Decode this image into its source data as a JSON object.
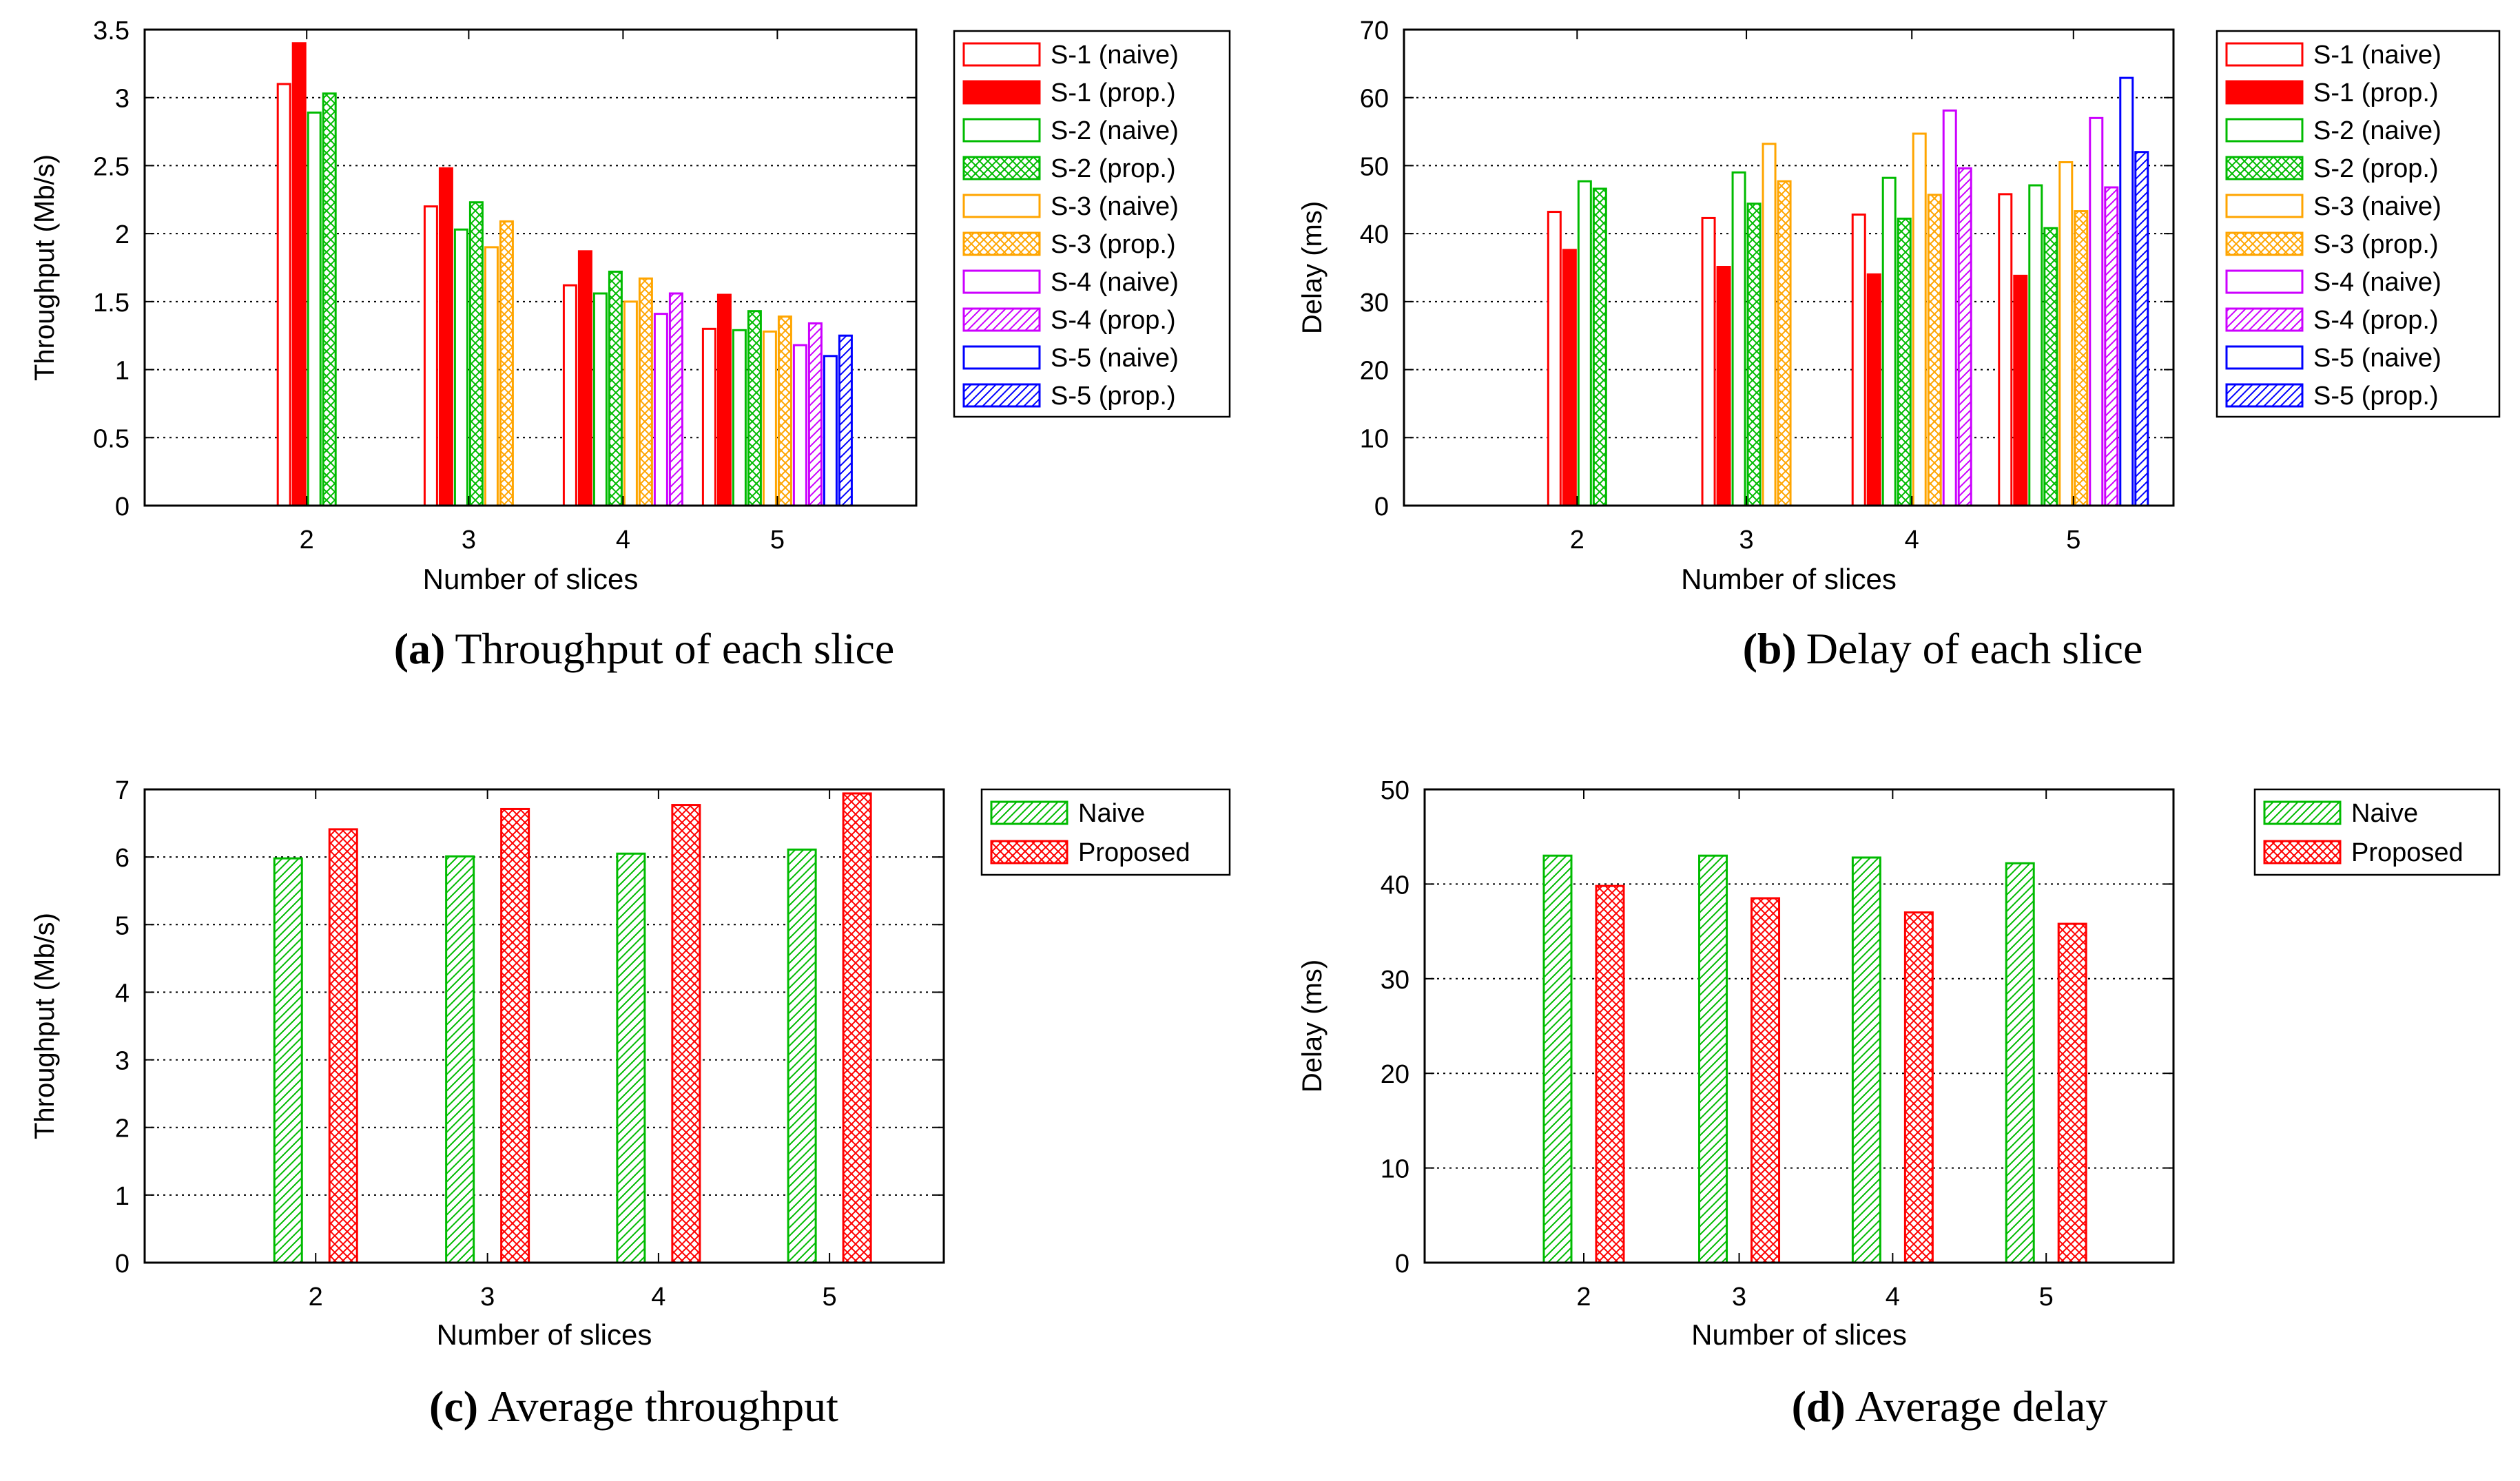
{
  "colors": {
    "s1": "#ff0000",
    "s2": "#00bb00",
    "s3": "#ffa500",
    "s4": "#cc00ff",
    "s5": "#0000ff",
    "naive_avg": "#00bb00",
    "proposed_avg": "#ff0000"
  },
  "chart_data": [
    {
      "id": "a",
      "type": "bar",
      "caption_label": "(a)",
      "caption_text": "Throughput of each slice",
      "xlabel": "Number of slices",
      "ylabel": "Throughput (Mb/s)",
      "ylim": [
        0,
        3.5
      ],
      "yticks": [
        "0",
        "0.5",
        "1",
        "1.5",
        "2",
        "2.5",
        "3",
        "3.5"
      ],
      "grid": true,
      "legend_position": "right",
      "categories": [
        "2",
        "3",
        "4",
        "5"
      ],
      "series": [
        {
          "name": "S-1 (naive)",
          "color": "s1",
          "style": "outline",
          "values": [
            3.1,
            2.2,
            1.62,
            1.3
          ]
        },
        {
          "name": "S-1 (prop.)",
          "color": "s1",
          "style": "solid",
          "values": [
            3.4,
            2.48,
            1.87,
            1.55
          ]
        },
        {
          "name": "S-2 (naive)",
          "color": "s2",
          "style": "outline",
          "values": [
            2.89,
            2.03,
            1.56,
            1.29
          ]
        },
        {
          "name": "S-2 (prop.)",
          "color": "s2",
          "style": "cross",
          "values": [
            3.03,
            2.23,
            1.72,
            1.43
          ]
        },
        {
          "name": "S-3 (naive)",
          "color": "s3",
          "style": "outline",
          "values": [
            null,
            1.9,
            1.5,
            1.28
          ]
        },
        {
          "name": "S-3 (prop.)",
          "color": "s3",
          "style": "cross",
          "values": [
            null,
            2.09,
            1.67,
            1.39
          ]
        },
        {
          "name": "S-4 (naive)",
          "color": "s4",
          "style": "outline",
          "values": [
            null,
            null,
            1.41,
            1.18
          ]
        },
        {
          "name": "S-4 (prop.)",
          "color": "s4",
          "style": "diagonal",
          "values": [
            null,
            null,
            1.56,
            1.34
          ]
        },
        {
          "name": "S-5 (naive)",
          "color": "s5",
          "style": "outline",
          "values": [
            null,
            null,
            null,
            1.1
          ]
        },
        {
          "name": "S-5 (prop.)",
          "color": "s5",
          "style": "diagonal",
          "values": [
            null,
            null,
            null,
            1.25
          ]
        }
      ]
    },
    {
      "id": "b",
      "type": "bar",
      "caption_label": "(b)",
      "caption_text": "Delay of each slice",
      "xlabel": "Number of slices",
      "ylabel": "Delay (ms)",
      "ylim": [
        0,
        70
      ],
      "yticks": [
        "0",
        "10",
        "20",
        "30",
        "40",
        "50",
        "60",
        "70"
      ],
      "grid": true,
      "legend_position": "right",
      "categories": [
        "2",
        "3",
        "4",
        "5"
      ],
      "series": [
        {
          "name": "S-1 (naive)",
          "color": "s1",
          "style": "outline",
          "values": [
            43.2,
            42.3,
            42.8,
            45.8
          ]
        },
        {
          "name": "S-1 (prop.)",
          "color": "s1",
          "style": "solid",
          "values": [
            37.6,
            35.1,
            34.0,
            33.8
          ]
        },
        {
          "name": "S-2 (naive)",
          "color": "s2",
          "style": "outline",
          "values": [
            47.7,
            49.0,
            48.2,
            47.1
          ]
        },
        {
          "name": "S-2 (prop.)",
          "color": "s2",
          "style": "cross",
          "values": [
            46.6,
            44.4,
            42.2,
            40.8
          ]
        },
        {
          "name": "S-3 (naive)",
          "color": "s3",
          "style": "outline",
          "values": [
            null,
            53.2,
            54.7,
            50.5
          ]
        },
        {
          "name": "S-3 (prop.)",
          "color": "s3",
          "style": "cross",
          "values": [
            null,
            47.7,
            45.7,
            43.3
          ]
        },
        {
          "name": "S-4 (naive)",
          "color": "s4",
          "style": "outline",
          "values": [
            null,
            null,
            58.1,
            57.0
          ]
        },
        {
          "name": "S-4 (prop.)",
          "color": "s4",
          "style": "diagonal",
          "values": [
            null,
            null,
            49.6,
            46.8
          ]
        },
        {
          "name": "S-5 (naive)",
          "color": "s5",
          "style": "outline",
          "values": [
            null,
            null,
            null,
            62.9
          ]
        },
        {
          "name": "S-5 (prop.)",
          "color": "s5",
          "style": "diagonal",
          "values": [
            null,
            null,
            null,
            52.0
          ]
        }
      ]
    },
    {
      "id": "c",
      "type": "bar",
      "caption_label": "(c)",
      "caption_text": "Average throughput",
      "xlabel": "Number of slices",
      "ylabel": "Throughput (Mb/s)",
      "ylim": [
        0,
        7
      ],
      "yticks": [
        "0",
        "1",
        "2",
        "3",
        "4",
        "5",
        "6",
        "7"
      ],
      "grid": true,
      "legend_position": "right",
      "categories": [
        "2",
        "3",
        "4",
        "5"
      ],
      "series": [
        {
          "name": "Naive",
          "color": "naive_avg",
          "style": "diagonal",
          "values": [
            5.98,
            6.01,
            6.05,
            6.11
          ]
        },
        {
          "name": "Proposed",
          "color": "proposed_avg",
          "style": "cross",
          "values": [
            6.41,
            6.71,
            6.77,
            6.94
          ]
        }
      ]
    },
    {
      "id": "d",
      "type": "bar",
      "caption_label": "(d)",
      "caption_text": "Average delay",
      "xlabel": "Number of slices",
      "ylabel": "Delay (ms)",
      "ylim": [
        0,
        50
      ],
      "yticks": [
        "0",
        "10",
        "20",
        "30",
        "40",
        "50"
      ],
      "grid": true,
      "legend_position": "right",
      "categories": [
        "2",
        "3",
        "4",
        "5"
      ],
      "series": [
        {
          "name": "Naive",
          "color": "naive_avg",
          "style": "diagonal",
          "values": [
            43.0,
            43.0,
            42.8,
            42.2
          ]
        },
        {
          "name": "Proposed",
          "color": "proposed_avg",
          "style": "cross",
          "values": [
            39.8,
            38.5,
            37.0,
            35.8
          ]
        }
      ]
    }
  ]
}
